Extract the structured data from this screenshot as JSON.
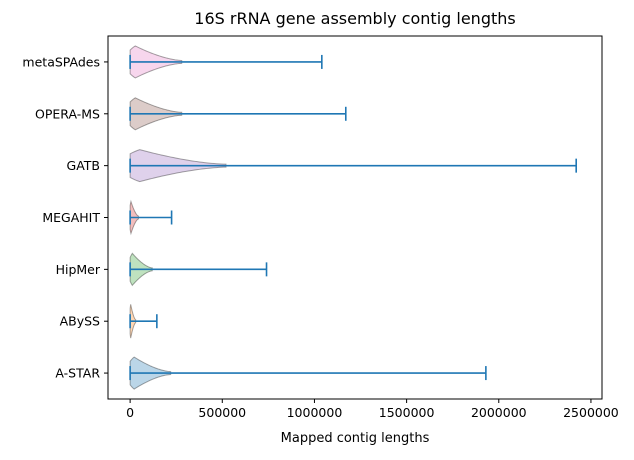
{
  "chart_data": {
    "type": "violin",
    "orientation": "horizontal",
    "title": "16S rRNA gene assembly contig lengths",
    "xlabel": "Mapped contig lengths",
    "ylabel": "",
    "xlim": [
      -120000,
      2560000
    ],
    "xticks": [
      0,
      500000,
      1000000,
      1500000,
      2000000,
      2500000
    ],
    "xtick_labels": [
      "0",
      "500000",
      "1000000",
      "1500000",
      "2000000",
      "2500000"
    ],
    "grid": false,
    "legend": "none",
    "series": [
      {
        "label": "A-STAR",
        "min": 0,
        "max": 1930000,
        "color": "#1f77b4",
        "body_end": 220000,
        "width": 0.36
      },
      {
        "label": "ABySS",
        "min": 0,
        "max": 145000,
        "color": "#ff7f0e",
        "body_end": 30000,
        "width": 0.38
      },
      {
        "label": "HipMer",
        "min": 0,
        "max": 740000,
        "color": "#2ca02c",
        "body_end": 120000,
        "width": 0.36
      },
      {
        "label": "MEGAHIT",
        "min": 0,
        "max": 225000,
        "color": "#d62728",
        "body_end": 45000,
        "width": 0.36
      },
      {
        "label": "GATB",
        "min": 0,
        "max": 2420000,
        "color": "#9467bd",
        "body_end": 520000,
        "width": 0.36
      },
      {
        "label": "OPERA-MS",
        "min": 0,
        "max": 1170000,
        "color": "#8c564b",
        "body_end": 280000,
        "width": 0.36
      },
      {
        "label": "metaSPAdes",
        "min": 0,
        "max": 1040000,
        "color": "#e377c2",
        "body_end": 280000,
        "width": 0.36
      }
    ]
  }
}
